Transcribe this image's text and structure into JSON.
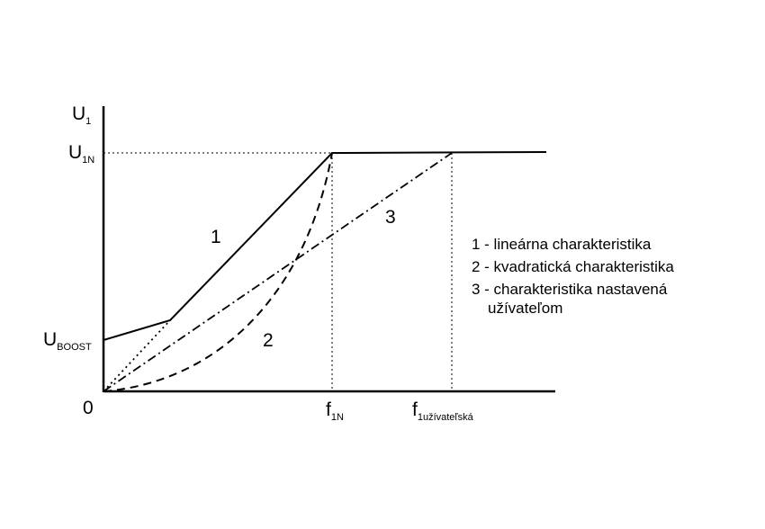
{
  "axes": {
    "y_label": "U",
    "y_label_sub": "1",
    "y_nominal": "U",
    "y_nominal_sub": "1N",
    "y_boost": "U",
    "y_boost_sub": "BOOST",
    "origin": "0",
    "x_nominal": "f",
    "x_nominal_sub": "1N",
    "x_user": "f",
    "x_user_sub": "1užívateľská"
  },
  "curves": {
    "linear": "1",
    "quadratic": "2",
    "user_defined": "3"
  },
  "legend": {
    "item1": "1 - lineárna charakteristika",
    "item2": "2 - kvadratická charakteristika",
    "item3_line1": "3 - charakteristika nastavená",
    "item3_line2": "užívateľom"
  },
  "colors": {
    "stroke": "#000000",
    "background": "#ffffff"
  }
}
